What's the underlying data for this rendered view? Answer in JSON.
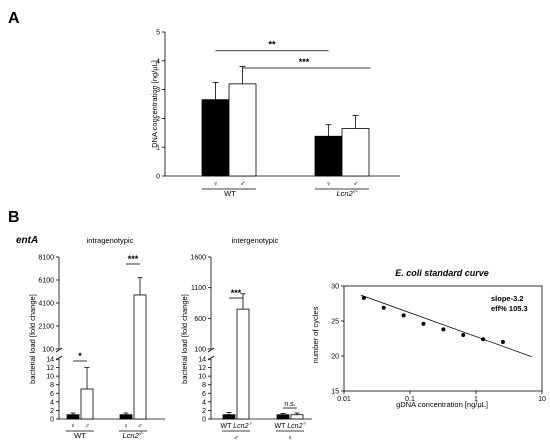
{
  "panels": {
    "a": "A",
    "b": "B"
  },
  "gene_label": "entA",
  "group_labels": {
    "wt": "WT",
    "lcn2": "Lcn2",
    "lcn2_sup": "-/-"
  },
  "sex": {
    "female": "♀",
    "male": "♂"
  },
  "chart_data": [
    {
      "id": "A",
      "type": "bar",
      "ylabel": "DNA concentration [ng/μL]",
      "ylim": [
        0,
        5
      ],
      "yticks": [
        "0",
        "1",
        "2",
        "3",
        "4",
        "5"
      ],
      "groups": [
        "WT",
        "Lcn2-/-"
      ],
      "sexes": [
        "♀",
        "♂"
      ],
      "values": [
        [
          2.65,
          3.2
        ],
        [
          1.38,
          1.65
        ]
      ],
      "errors": [
        [
          0.6,
          0.6
        ],
        [
          0.4,
          0.45
        ]
      ],
      "colors": [
        "#000000",
        "#ffffff"
      ],
      "significance": [
        {
          "label": "**",
          "from": "WT ♀",
          "to": "Lcn2-/- ♀"
        },
        {
          "label": "***",
          "from": "WT ♂",
          "to": "Lcn2-/- ♂"
        }
      ]
    },
    {
      "id": "B-intragenotypic",
      "type": "bar",
      "title": "intragenotypic",
      "ylabel": "bacterial load [fold change]",
      "broken_axis": {
        "lower": [
          0,
          14
        ],
        "upper": [
          100,
          8100
        ]
      },
      "yticks_lower": [
        "0",
        "2",
        "4",
        "6",
        "8",
        "10",
        "12",
        "14"
      ],
      "yticks_upper": [
        "100",
        "2100",
        "4100",
        "6100",
        "8100"
      ],
      "groups": [
        "WT",
        "Lcn2-/-"
      ],
      "sexes": [
        "♀",
        "♂"
      ],
      "values": [
        [
          1,
          7
        ],
        [
          1,
          4800
        ]
      ],
      "errors": [
        [
          0.4,
          5
        ],
        [
          0.4,
          1500
        ]
      ],
      "significance": [
        {
          "label": "*",
          "group": "WT"
        },
        {
          "label": "***",
          "group": "Lcn2-/-"
        }
      ]
    },
    {
      "id": "B-intergenotypic",
      "type": "bar",
      "title": "intergenotypic",
      "ylabel": "bacterial load [fold change]",
      "broken_axis": {
        "lower": [
          0,
          14
        ],
        "upper": [
          100,
          1600
        ]
      },
      "yticks_lower": [
        "0",
        "2",
        "4",
        "6",
        "8",
        "10",
        "12",
        "14"
      ],
      "yticks_upper": [
        "100",
        "600",
        "1100",
        "1600"
      ],
      "groups": [
        "♂",
        "♀"
      ],
      "genotypes": [
        "WT",
        "Lcn2-/-"
      ],
      "values": [
        [
          1,
          750
        ],
        [
          1,
          1
        ]
      ],
      "errors": [
        [
          0.5,
          250
        ],
        [
          0.3,
          0.4
        ]
      ],
      "significance": [
        {
          "label": "***",
          "group": "♂"
        },
        {
          "label": "n.s.",
          "group": "♀"
        }
      ]
    },
    {
      "id": "B-standard-curve",
      "type": "scatter",
      "title": "E. coli standard curve",
      "xlabel": "gDNA concentration [ng/μL]",
      "ylabel": "number of cycles",
      "xscale": "log",
      "xlim": [
        0.01,
        10
      ],
      "ylim": [
        15,
        30
      ],
      "xticks": [
        "0.01",
        "0.1",
        "1",
        "10"
      ],
      "yticks": [
        "15",
        "20",
        "25",
        "30"
      ],
      "x": [
        0.02,
        0.04,
        0.08,
        0.16,
        0.32,
        0.64,
        1.28,
        2.56
      ],
      "y": [
        28.3,
        26.9,
        25.8,
        24.6,
        23.8,
        23.0,
        22.4,
        22.0
      ],
      "fit": {
        "x": [
          0.018,
          7
        ],
        "y": [
          28.7,
          19.9
        ]
      },
      "annotations": [
        "slope-3.2",
        "eff% 105.3"
      ]
    }
  ]
}
